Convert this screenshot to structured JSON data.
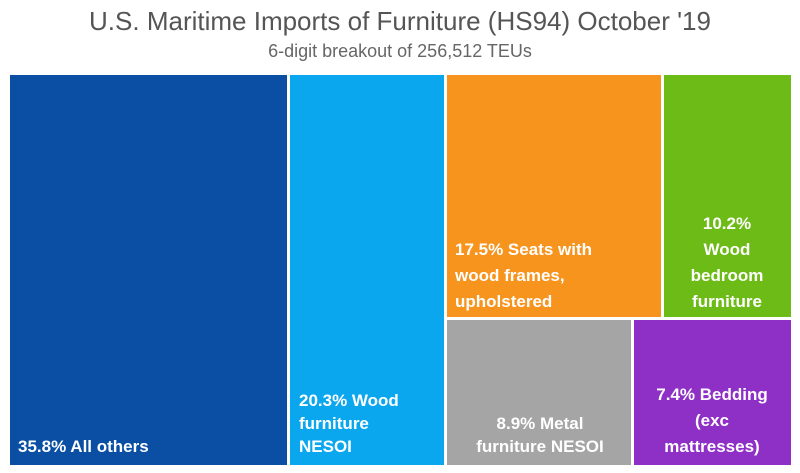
{
  "title": "U.S. Maritime Imports of Furniture (HS94) October '19",
  "subtitle": "6-digit breakout of 256,512 TEUs",
  "colors": {
    "all_others": "#0a4fa4",
    "wood_furniture": "#0aa7ef",
    "seats": "#f7941e",
    "bedroom": "#6dbb17",
    "metal": "#a5a5a5",
    "bedding": "#8e2fc6"
  },
  "chart_data": {
    "type": "treemap",
    "title": "U.S. Maritime Imports of Furniture (HS94) October '19",
    "subtitle": "6-digit breakout of 256,512 TEUs",
    "total_teus": 256512,
    "items": [
      {
        "key": "all_others",
        "value": 35.8,
        "label": [
          "35.8% All others"
        ],
        "color": "#0a4fa4"
      },
      {
        "key": "wood_furniture",
        "value": 20.3,
        "label": [
          "20.3%  Wood",
          "furniture",
          "NESOI"
        ],
        "color": "#0aa7ef"
      },
      {
        "key": "seats",
        "value": 17.5,
        "label": [
          "17.5% Seats with",
          "wood frames,",
          "upholstered"
        ],
        "color": "#f7941e"
      },
      {
        "key": "bedroom",
        "value": 10.2,
        "label": [
          "10.2%",
          "Wood",
          "bedroom",
          "furniture"
        ],
        "color": "#6dbb17"
      },
      {
        "key": "metal",
        "value": 8.9,
        "label": [
          "8.9% Metal",
          "furniture NESOI"
        ],
        "color": "#a5a5a5"
      },
      {
        "key": "bedding",
        "value": 7.4,
        "label": [
          "7.4% Bedding",
          "(exc",
          "mattresses)"
        ],
        "color": "#8e2fc6"
      }
    ]
  }
}
